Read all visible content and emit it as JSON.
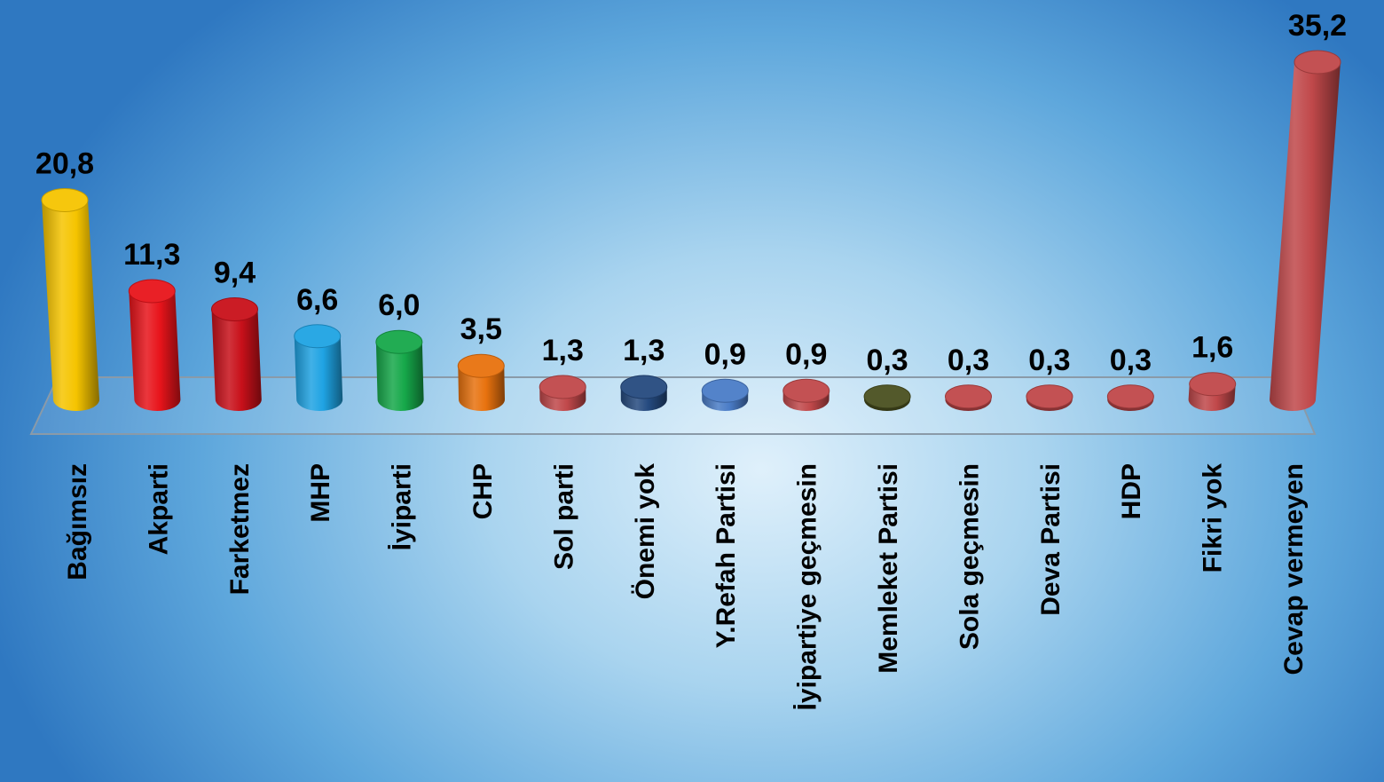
{
  "chart_data": {
    "type": "bar",
    "title": "",
    "xlabel": "",
    "ylabel": "",
    "ylim": [
      0,
      35.2
    ],
    "categories": [
      "Bağımsız",
      "Akparti",
      "Farketmez",
      "MHP",
      "İyiparti",
      "CHP",
      "Sol parti",
      "Önemi yok",
      "Y.Refah Partisi",
      "İyipartiye geçmesin",
      "Memleket Partisi",
      "Sola geçmesin",
      "Deva Partisi",
      "HDP",
      "Fikri yok",
      "Cevap vermeyen"
    ],
    "values": [
      20.8,
      11.3,
      9.4,
      6.6,
      6.0,
      3.5,
      1.3,
      1.3,
      0.9,
      0.9,
      0.3,
      0.3,
      0.3,
      0.3,
      1.6,
      35.2
    ],
    "value_labels": [
      "20,8",
      "11,3",
      "9,4",
      "6,6",
      "6,0",
      "3,5",
      "1,3",
      "1,3",
      "0,9",
      "0,9",
      "0,3",
      "0,3",
      "0,3",
      "0,3",
      "1,6",
      "35,2"
    ],
    "colors": [
      "#f5c400",
      "#e8141b",
      "#c8101a",
      "#1fa3e3",
      "#16a84a",
      "#e8720e",
      "#c0484a",
      "#254a7f",
      "#4a7cc7",
      "#c0484a",
      "#4a5020",
      "#c0484a",
      "#c0484a",
      "#c0484a",
      "#c0484a",
      "#c0484a"
    ],
    "grid": false,
    "legend": "none"
  }
}
